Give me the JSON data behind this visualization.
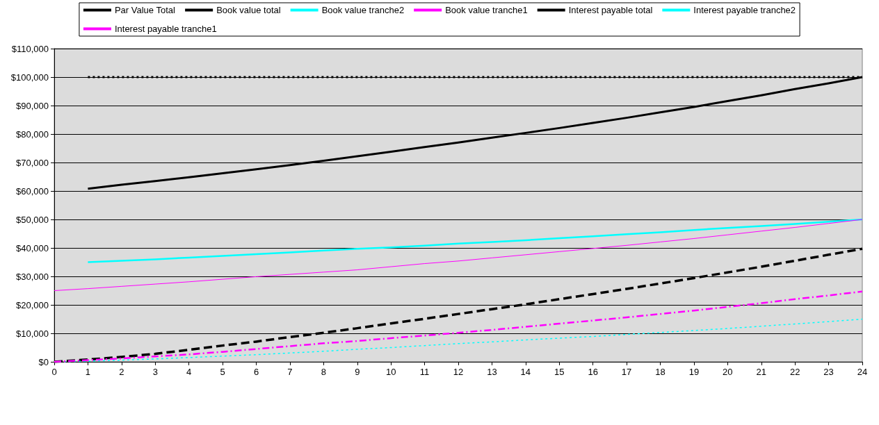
{
  "chart_data": {
    "type": "line",
    "x": [
      0,
      1,
      2,
      3,
      4,
      5,
      6,
      7,
      8,
      9,
      10,
      11,
      12,
      13,
      14,
      15,
      16,
      17,
      18,
      19,
      20,
      21,
      22,
      23,
      24
    ],
    "xlim": [
      0,
      24
    ],
    "xticks": [
      0,
      1,
      2,
      3,
      4,
      5,
      6,
      7,
      8,
      9,
      10,
      11,
      12,
      13,
      14,
      15,
      16,
      17,
      18,
      19,
      20,
      21,
      22,
      23,
      24
    ],
    "ylim": [
      0,
      110000
    ],
    "yticks": [
      {
        "value": 0,
        "label": "$0"
      },
      {
        "value": 10000,
        "label": "$10,000"
      },
      {
        "value": 20000,
        "label": "$20,000"
      },
      {
        "value": 30000,
        "label": "$30,000"
      },
      {
        "value": 40000,
        "label": "$40,000"
      },
      {
        "value": 50000,
        "label": "$50,000"
      },
      {
        "value": 60000,
        "label": "$60,000"
      },
      {
        "value": 70000,
        "label": "$70,000"
      },
      {
        "value": 80000,
        "label": "$80,000"
      },
      {
        "value": 90000,
        "label": "$90,000"
      },
      {
        "value": 100000,
        "label": "$100,000"
      },
      {
        "value": 110000,
        "label": "$110,000"
      }
    ],
    "grid": "y",
    "legend": "top",
    "marker": "none",
    "series": [
      {
        "name": "Par Value Total",
        "color": "#000000",
        "line_style": "dotted",
        "values": [
          null,
          100000,
          100000,
          100000,
          100000,
          100000,
          100000,
          100000,
          100000,
          100000,
          100000,
          100000,
          100000,
          100000,
          100000,
          100000,
          100000,
          100000,
          100000,
          100000,
          100000,
          100000,
          100000,
          100000,
          100000
        ]
      },
      {
        "name": "Book value total",
        "color": "#000000",
        "line_style": "solid",
        "values": [
          null,
          60800,
          62200,
          63500,
          64800,
          66200,
          67600,
          69100,
          70600,
          72200,
          73800,
          75400,
          77000,
          78700,
          80400,
          82100,
          83900,
          85700,
          87600,
          89500,
          91600,
          93600,
          95800,
          97800,
          100000
        ]
      },
      {
        "name": "Book value tranche2",
        "color": "#00ffff",
        "line_style": "solid",
        "values": [
          null,
          35000,
          35500,
          36000,
          36600,
          37200,
          37800,
          38400,
          39100,
          39700,
          40200,
          40800,
          41500,
          42100,
          42700,
          43400,
          44100,
          44800,
          45500,
          46300,
          47000,
          47700,
          48400,
          49200,
          50000
        ]
      },
      {
        "name": "Book value tranche1",
        "color": "#ff00ff",
        "line_style": "solid",
        "values": [
          25000,
          25700,
          26500,
          27300,
          28100,
          29000,
          29900,
          30700,
          31500,
          32300,
          33400,
          34500,
          35400,
          36500,
          37600,
          38700,
          39800,
          40900,
          42100,
          43300,
          44600,
          45900,
          47200,
          48600,
          50000
        ]
      },
      {
        "name": "Interest payable total",
        "color": "#000000",
        "line_style": "dashed",
        "values": [
          0,
          800,
          1700,
          2800,
          4200,
          5700,
          7100,
          8700,
          10200,
          11800,
          13500,
          15100,
          16800,
          18500,
          20200,
          22000,
          23800,
          25600,
          27500,
          29400,
          31400,
          33400,
          35500,
          37600,
          39700
        ]
      },
      {
        "name": "Interest payable tranche2",
        "color": "#00ffff",
        "line_style": "dotted",
        "values": [
          0,
          200,
          600,
          1000,
          1500,
          2000,
          2500,
          3100,
          3700,
          4400,
          5000,
          5700,
          6400,
          7000,
          7700,
          8300,
          8900,
          9600,
          10300,
          11000,
          11700,
          12500,
          13300,
          14100,
          15000
        ]
      },
      {
        "name": "Interest payable tranche1",
        "color": "#ff00ff",
        "line_style": "dashed",
        "values": [
          0,
          600,
          1200,
          1900,
          2600,
          3500,
          4500,
          5500,
          6500,
          7300,
          8300,
          9200,
          10200,
          11200,
          12300,
          13400,
          14500,
          15600,
          16800,
          18000,
          19300,
          20600,
          22000,
          23300,
          24700
        ]
      }
    ]
  }
}
